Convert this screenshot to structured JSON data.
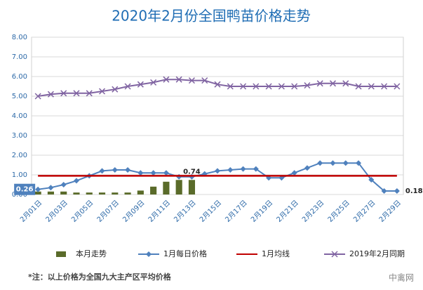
{
  "chart_data": {
    "type": "combo",
    "title": "2020年2月份全国鸭苗价格走势",
    "categories": [
      "2月01日",
      null,
      "2月03日",
      null,
      "2月05日",
      null,
      "2月07日",
      null,
      "2月09日",
      null,
      "2月11日",
      null,
      "2月13日",
      null,
      "2月15日",
      null,
      "2月17日",
      null,
      "2月19日",
      null,
      "2月21日",
      null,
      "2月23日",
      null,
      "2月25日",
      null,
      "2月27日",
      null,
      "2月29日"
    ],
    "ylim": [
      0,
      8
    ],
    "yticks": [
      {
        "value": 0,
        "label": "0.00"
      },
      {
        "value": 1,
        "label": "1.00"
      },
      {
        "value": 2,
        "label": "2.00"
      },
      {
        "value": 3,
        "label": "3.00"
      },
      {
        "value": 4,
        "label": "4.00"
      },
      {
        "value": 5,
        "label": "5.00"
      },
      {
        "value": 6,
        "label": "6.00"
      },
      {
        "value": 7,
        "label": "7.00"
      },
      {
        "value": 8,
        "label": "8.00"
      }
    ],
    "grid": true,
    "legend": "bottom",
    "series": [
      {
        "name": "本月走势",
        "kind": "bar",
        "color": "#5a6b2a",
        "values": [
          0.15,
          0.15,
          0.15,
          0.1,
          0.1,
          0.1,
          0.1,
          0.1,
          0.2,
          0.4,
          0.65,
          0.74,
          0.74,
          null,
          null,
          null,
          null,
          null,
          null,
          null,
          null,
          null,
          null,
          null,
          null,
          null,
          null,
          null,
          null
        ],
        "value_labels": [
          null,
          null,
          null,
          null,
          null,
          null,
          null,
          null,
          null,
          null,
          null,
          null,
          "0.74",
          null,
          null,
          null,
          null,
          null,
          null,
          null,
          null,
          null,
          null,
          null,
          null,
          null,
          null,
          null,
          null
        ]
      },
      {
        "name": "1月每日价格",
        "kind": "line",
        "marker": "diamond",
        "color": "#4f81bd",
        "values": [
          0.26,
          0.35,
          0.5,
          0.7,
          0.95,
          1.2,
          1.25,
          1.25,
          1.1,
          1.1,
          1.1,
          0.9,
          0.9,
          1.05,
          1.2,
          1.25,
          1.3,
          1.3,
          0.85,
          0.85,
          1.1,
          1.35,
          1.6,
          1.6,
          1.6,
          1.6,
          0.75,
          0.18,
          0.18
        ],
        "value_labels": [
          "0.26",
          null,
          null,
          null,
          null,
          null,
          null,
          null,
          null,
          null,
          null,
          null,
          null,
          null,
          null,
          null,
          null,
          null,
          null,
          null,
          null,
          null,
          null,
          null,
          null,
          null,
          null,
          null,
          "0.18"
        ]
      },
      {
        "name": "1月均线",
        "kind": "line",
        "marker": "none",
        "color": "#c00000",
        "values": [
          0.95,
          0.95,
          0.95,
          0.95,
          0.95,
          0.95,
          0.95,
          0.95,
          0.95,
          0.95,
          0.95,
          0.95,
          0.95,
          0.95,
          0.95,
          0.95,
          0.95,
          0.95,
          0.95,
          0.95,
          0.95,
          0.95,
          0.95,
          0.95,
          0.95,
          0.95,
          0.95,
          0.95,
          0.95
        ]
      },
      {
        "name": "2019年2月同期",
        "kind": "line",
        "marker": "x",
        "color": "#8064a2",
        "values": [
          5.0,
          5.1,
          5.15,
          5.15,
          5.15,
          5.25,
          5.35,
          5.5,
          5.6,
          5.7,
          5.85,
          5.85,
          5.8,
          5.8,
          5.6,
          5.5,
          5.5,
          5.5,
          5.5,
          5.5,
          5.5,
          5.55,
          5.65,
          5.65,
          5.65,
          5.5,
          5.5,
          5.5,
          5.5
        ]
      }
    ],
    "footnote": "*注：以上价格为全国九大主产区平均价格",
    "watermark": "中禽网"
  }
}
